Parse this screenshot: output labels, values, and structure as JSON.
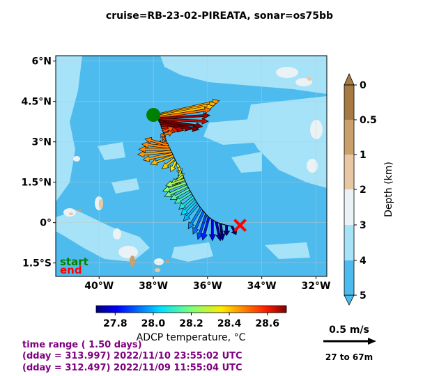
{
  "figure": {
    "title": "cruise=RB-23-02-PIREATA,   sonar=os75bb",
    "info_lines": [
      "time range ( 1.50 days)",
      "(dday = 313.997) 2022/11/10 23:55:02 UTC",
      "(dday = 312.497) 2022/11/09 11:55:04 UTC"
    ],
    "scale_label": "0.5 m/s",
    "depth_range_label": "27 to 67m",
    "start_label": "start",
    "end_label": "end",
    "colors": {
      "deep": "#4dbbed",
      "mid": "#a6e2f8",
      "shelf": "#eaf2f5",
      "land_light": "#e8c7a3",
      "land_mid": "#c9a06a",
      "land_dark": "#a77a43",
      "start_marker": "#008000",
      "end_marker": "#ff0000",
      "info_text": "#800080"
    }
  },
  "chart_data": {
    "type": "quiver",
    "xlabel": "",
    "ylabel": "",
    "xlim": [
      -41.6,
      -31.6
    ],
    "ylim": [
      -2.0,
      6.2
    ],
    "xticks": [
      -40,
      -38,
      -36,
      -34,
      -32
    ],
    "xtick_labels": [
      "40°W",
      "38°W",
      "36°W",
      "34°W",
      "32°W"
    ],
    "yticks": [
      -1.5,
      0,
      1.5,
      3,
      4.5,
      6
    ],
    "ytick_labels": [
      "1.5°S",
      "0°",
      "1.5°N",
      "3°N",
      "4.5°N",
      "6°N"
    ],
    "grid": true,
    "start": {
      "lon": -38.0,
      "lat": 4.0
    },
    "end": {
      "lon": -34.8,
      "lat": -0.1
    },
    "vector_scale_ms": 0.5,
    "arrows": [
      {
        "lon": -37.95,
        "lat": 3.98,
        "u": 0.62,
        "v": 0.14,
        "t": 28.45
      },
      {
        "lon": -37.92,
        "lat": 3.96,
        "u": 0.58,
        "v": 0.12,
        "t": 28.42
      },
      {
        "lon": -37.9,
        "lat": 3.94,
        "u": 0.55,
        "v": 0.1,
        "t": 28.4
      },
      {
        "lon": -37.87,
        "lat": 3.9,
        "u": 0.52,
        "v": 0.08,
        "t": 28.5
      },
      {
        "lon": -37.84,
        "lat": 3.87,
        "u": 0.5,
        "v": 0.03,
        "t": 28.68
      },
      {
        "lon": -37.82,
        "lat": 3.84,
        "u": 0.48,
        "v": -0.02,
        "t": 28.65
      },
      {
        "lon": -37.8,
        "lat": 3.8,
        "u": 0.42,
        "v": -0.06,
        "t": 28.72
      },
      {
        "lon": -37.78,
        "lat": 3.76,
        "u": 0.38,
        "v": -0.08,
        "t": 28.74
      },
      {
        "lon": -37.75,
        "lat": 3.7,
        "u": 0.3,
        "v": -0.06,
        "t": 28.7
      },
      {
        "lon": -37.72,
        "lat": 3.62,
        "u": 0.22,
        "v": -0.05,
        "t": 28.66
      },
      {
        "lon": -37.7,
        "lat": 3.55,
        "u": 0.16,
        "v": -0.04,
        "t": 28.6
      },
      {
        "lon": -37.67,
        "lat": 3.47,
        "u": 0.12,
        "v": -0.03,
        "t": 28.55
      },
      {
        "lon": -37.64,
        "lat": 3.38,
        "u": 0.1,
        "v": 0.04,
        "t": 28.52
      },
      {
        "lon": -37.6,
        "lat": 3.28,
        "u": 0.08,
        "v": 0.02,
        "t": 28.5
      },
      {
        "lon": -37.57,
        "lat": 3.18,
        "u": -0.04,
        "v": 0.03,
        "t": 28.5
      },
      {
        "lon": -37.55,
        "lat": 3.08,
        "u": -0.03,
        "v": 0.02,
        "t": 28.52
      },
      {
        "lon": -37.5,
        "lat": 2.98,
        "u": -0.1,
        "v": -0.02,
        "t": 28.5
      },
      {
        "lon": -37.46,
        "lat": 2.88,
        "u": -0.22,
        "v": 0.06,
        "t": 28.48
      },
      {
        "lon": -37.42,
        "lat": 2.8,
        "u": -0.26,
        "v": 0.03,
        "t": 28.47
      },
      {
        "lon": -37.38,
        "lat": 2.72,
        "u": -0.3,
        "v": 0.0,
        "t": 28.46
      },
      {
        "lon": -37.34,
        "lat": 2.64,
        "u": -0.32,
        "v": -0.03,
        "t": 28.45
      },
      {
        "lon": -37.3,
        "lat": 2.56,
        "u": -0.28,
        "v": -0.06,
        "t": 28.44
      },
      {
        "lon": -37.26,
        "lat": 2.48,
        "u": -0.22,
        "v": -0.08,
        "t": 28.42
      },
      {
        "lon": -37.22,
        "lat": 2.38,
        "u": -0.12,
        "v": -0.1,
        "t": 28.4
      },
      {
        "lon": -37.17,
        "lat": 2.28,
        "u": -0.05,
        "v": -0.1,
        "t": 28.36
      },
      {
        "lon": -37.12,
        "lat": 2.17,
        "u": 0.04,
        "v": -0.1,
        "t": 28.34
      },
      {
        "lon": -37.06,
        "lat": 2.05,
        "u": 0.04,
        "v": -0.12,
        "t": 28.32
      },
      {
        "lon": -37.0,
        "lat": 1.93,
        "u": -0.02,
        "v": -0.14,
        "t": 28.3
      },
      {
        "lon": -36.95,
        "lat": 1.82,
        "u": -0.08,
        "v": -0.12,
        "t": 28.28
      },
      {
        "lon": -36.9,
        "lat": 1.72,
        "u": -0.12,
        "v": -0.08,
        "t": 28.27
      },
      {
        "lon": -36.85,
        "lat": 1.6,
        "u": -0.18,
        "v": -0.06,
        "t": 28.25
      },
      {
        "lon": -36.8,
        "lat": 1.48,
        "u": -0.22,
        "v": -0.08,
        "t": 28.22
      },
      {
        "lon": -36.74,
        "lat": 1.36,
        "u": -0.22,
        "v": -0.1,
        "t": 28.18
      },
      {
        "lon": -36.68,
        "lat": 1.24,
        "u": -0.18,
        "v": -0.1,
        "t": 28.15
      },
      {
        "lon": -36.6,
        "lat": 1.1,
        "u": -0.16,
        "v": -0.1,
        "t": 28.12
      },
      {
        "lon": -36.52,
        "lat": 0.96,
        "u": -0.14,
        "v": -0.12,
        "t": 28.08
      },
      {
        "lon": -36.44,
        "lat": 0.82,
        "u": -0.14,
        "v": -0.14,
        "t": 28.04
      },
      {
        "lon": -36.35,
        "lat": 0.68,
        "u": -0.14,
        "v": -0.16,
        "t": 28.0
      },
      {
        "lon": -36.25,
        "lat": 0.54,
        "u": -0.12,
        "v": -0.2,
        "t": 27.96
      },
      {
        "lon": -36.15,
        "lat": 0.42,
        "u": -0.1,
        "v": -0.22,
        "t": 27.92
      },
      {
        "lon": -36.05,
        "lat": 0.3,
        "u": -0.08,
        "v": -0.24,
        "t": 27.88
      },
      {
        "lon": -35.95,
        "lat": 0.2,
        "u": -0.06,
        "v": -0.22,
        "t": 27.84
      },
      {
        "lon": -35.82,
        "lat": 0.1,
        "u": 0.0,
        "v": -0.2,
        "t": 27.8
      },
      {
        "lon": -35.68,
        "lat": 0.02,
        "u": 0.04,
        "v": -0.18,
        "t": 27.74
      },
      {
        "lon": -35.52,
        "lat": -0.04,
        "u": 0.02,
        "v": -0.16,
        "t": 27.7
      },
      {
        "lon": -35.3,
        "lat": -0.1,
        "u": 0.0,
        "v": -0.1,
        "t": 27.66
      },
      {
        "lon": -35.1,
        "lat": -0.14,
        "u": 0.04,
        "v": -0.08,
        "t": 27.63
      }
    ],
    "temperature_colorbar": {
      "label": "ADCP temperature, °C",
      "range": [
        27.7,
        28.7
      ],
      "ticks": [
        27.8,
        28.0,
        28.2,
        28.4,
        28.6
      ],
      "tick_labels": [
        "27.8",
        "28.0",
        "28.2",
        "28.4",
        "28.6"
      ]
    },
    "depth_colorbar": {
      "label": "Depth (km)",
      "range": [
        0,
        5
      ],
      "ticks": [
        0,
        0.5,
        1,
        2,
        3,
        4,
        5
      ],
      "tick_labels": [
        "0",
        "0.5",
        "1",
        "2",
        "3",
        "4",
        "5"
      ],
      "band_colors": [
        "#a77a43",
        "#c9a06a",
        "#e8c7a3",
        "#eaf2f5",
        "#a6e2f8",
        "#4dbbed"
      ]
    }
  }
}
